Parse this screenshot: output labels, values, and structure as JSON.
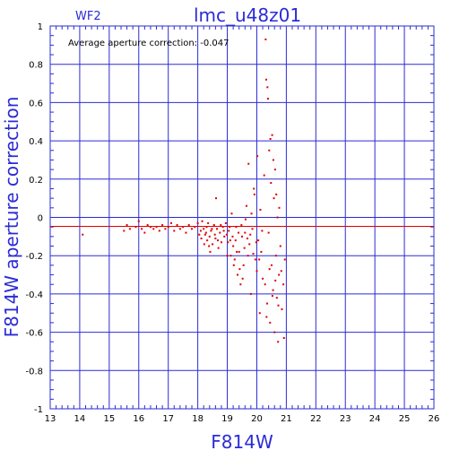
{
  "chart_data": {
    "type": "scatter",
    "title": "lmc_u48z01",
    "chip_label": "WF2",
    "annotation": "Average aperture correction: -0.047",
    "xlabel": "F814W",
    "ylabel": "F814W aperture correction",
    "xlim": [
      13,
      26
    ],
    "ylim": [
      -1,
      1
    ],
    "x_ticks": [
      "13",
      "14",
      "15",
      "16",
      "17",
      "18",
      "19",
      "20",
      "21",
      "22",
      "23",
      "24",
      "25",
      "26"
    ],
    "y_ticks": [
      "1",
      "0.8",
      "0.6",
      "0.4",
      "0.2",
      "0",
      "-0.2",
      "-0.4",
      "-0.6",
      "-0.8",
      "-1"
    ],
    "grid": true,
    "reference_line_y": -0.047,
    "colors": {
      "axes": "#2b2bd6",
      "points": "#e00000",
      "reference_line": "#e00000"
    },
    "series": [
      {
        "points": [
          [
            14.1,
            -0.09
          ],
          [
            15.5,
            -0.07
          ],
          [
            15.6,
            -0.04
          ],
          [
            15.7,
            -0.06
          ],
          [
            15.9,
            -0.05
          ],
          [
            16.0,
            -0.02
          ],
          [
            16.1,
            -0.06
          ],
          [
            16.2,
            -0.08
          ],
          [
            16.3,
            -0.04
          ],
          [
            16.4,
            -0.05
          ],
          [
            16.5,
            -0.06
          ],
          [
            16.6,
            -0.05
          ],
          [
            16.7,
            -0.07
          ],
          [
            16.8,
            -0.04
          ],
          [
            16.9,
            -0.06
          ],
          [
            17.0,
            -0.05
          ],
          [
            17.1,
            -0.03
          ],
          [
            17.2,
            -0.07
          ],
          [
            17.3,
            -0.04
          ],
          [
            17.4,
            -0.06
          ],
          [
            17.5,
            -0.05
          ],
          [
            17.6,
            -0.08
          ],
          [
            17.7,
            -0.04
          ],
          [
            17.8,
            -0.06
          ],
          [
            17.9,
            -0.05
          ],
          [
            18.0,
            -0.03
          ],
          [
            18.1,
            -0.07
          ],
          [
            18.15,
            -0.02
          ],
          [
            18.2,
            -0.06
          ],
          [
            18.25,
            -0.09
          ],
          [
            18.3,
            -0.05
          ],
          [
            18.32,
            -0.12
          ],
          [
            18.35,
            -0.03
          ],
          [
            18.4,
            -0.1
          ],
          [
            18.45,
            -0.07
          ],
          [
            18.5,
            -0.14
          ],
          [
            18.55,
            -0.04
          ],
          [
            18.6,
            -0.11
          ],
          [
            18.62,
            0.1
          ],
          [
            18.65,
            -0.06
          ],
          [
            18.7,
            -0.16
          ],
          [
            18.75,
            -0.08
          ],
          [
            18.8,
            -0.13
          ],
          [
            18.85,
            -0.05
          ],
          [
            18.9,
            -0.1
          ],
          [
            18.95,
            -0.03
          ],
          [
            19.0,
            -0.2
          ],
          [
            19.05,
            -0.07
          ],
          [
            19.1,
            -0.12
          ],
          [
            19.15,
            0.02
          ],
          [
            19.2,
            -0.15
          ],
          [
            19.25,
            -0.22
          ],
          [
            19.3,
            -0.05
          ],
          [
            19.35,
            -0.3
          ],
          [
            19.4,
            -0.18
          ],
          [
            19.45,
            -0.35
          ],
          [
            19.5,
            -0.1
          ],
          [
            19.55,
            -0.25
          ],
          [
            19.6,
            -0.08
          ],
          [
            19.65,
            0.06
          ],
          [
            19.7,
            -0.2
          ],
          [
            19.72,
            0.28
          ],
          [
            19.75,
            -0.14
          ],
          [
            19.8,
            -0.4
          ],
          [
            19.85,
            -0.06
          ],
          [
            19.9,
            0.15
          ],
          [
            19.95,
            -0.22
          ],
          [
            20.0,
            -0.28
          ],
          [
            20.02,
            0.32
          ],
          [
            20.05,
            -0.12
          ],
          [
            20.1,
            -0.5
          ],
          [
            20.12,
            0.04
          ],
          [
            20.15,
            -0.18
          ],
          [
            20.2,
            -0.32
          ],
          [
            20.25,
            0.22
          ],
          [
            20.3,
            0.93
          ],
          [
            20.32,
            0.72
          ],
          [
            20.35,
            -0.45
          ],
          [
            20.38,
            0.62
          ],
          [
            20.4,
            -0.08
          ],
          [
            20.42,
            0.35
          ],
          [
            20.45,
            -0.55
          ],
          [
            20.48,
            0.18
          ],
          [
            20.5,
            -0.25
          ],
          [
            20.52,
            0.43
          ],
          [
            20.55,
            -0.38
          ],
          [
            20.58,
            0.1
          ],
          [
            20.6,
            -0.6
          ],
          [
            20.62,
            0.25
          ],
          [
            20.65,
            -0.2
          ],
          [
            20.68,
            -0.42
          ],
          [
            20.7,
            0.0
          ],
          [
            20.72,
            -0.65
          ],
          [
            20.75,
            -0.3
          ],
          [
            20.8,
            -0.15
          ],
          [
            20.85,
            -0.48
          ],
          [
            20.9,
            -0.35
          ],
          [
            20.92,
            -0.63
          ],
          [
            20.95,
            -0.22
          ],
          [
            18.05,
            -0.09
          ],
          [
            18.12,
            -0.11
          ],
          [
            18.22,
            -0.14
          ],
          [
            18.28,
            -0.08
          ],
          [
            18.38,
            -0.15
          ],
          [
            18.42,
            -0.18
          ],
          [
            18.48,
            -0.06
          ],
          [
            18.58,
            -0.09
          ],
          [
            18.68,
            -0.12
          ],
          [
            18.78,
            -0.04
          ],
          [
            18.88,
            -0.07
          ],
          [
            18.98,
            -0.09
          ],
          [
            19.08,
            -0.05
          ],
          [
            19.18,
            -0.1
          ],
          [
            19.28,
            -0.12
          ],
          [
            19.38,
            -0.08
          ],
          [
            19.48,
            -0.04
          ],
          [
            19.58,
            -0.16
          ],
          [
            19.68,
            -0.11
          ],
          [
            19.78,
            -0.09
          ],
          [
            19.88,
            -0.19
          ],
          [
            19.98,
            -0.13
          ],
          [
            20.08,
            -0.22
          ],
          [
            20.18,
            -0.07
          ],
          [
            20.28,
            -0.35
          ],
          [
            20.33,
            -0.52
          ],
          [
            20.43,
            -0.27
          ],
          [
            20.53,
            -0.41
          ],
          [
            20.63,
            -0.33
          ],
          [
            20.73,
            -0.46
          ],
          [
            20.83,
            -0.28
          ],
          [
            20.36,
            0.68
          ],
          [
            20.46,
            0.41
          ],
          [
            20.56,
            0.3
          ],
          [
            20.66,
            0.12
          ],
          [
            20.76,
            0.05
          ],
          [
            19.92,
            0.12
          ],
          [
            19.82,
            0.02
          ],
          [
            19.62,
            -0.01
          ],
          [
            19.52,
            -0.32
          ],
          [
            19.42,
            -0.27
          ],
          [
            19.32,
            -0.18
          ],
          [
            19.22,
            -0.25
          ],
          [
            19.12,
            -0.2
          ],
          [
            19.02,
            -0.13
          ]
        ]
      }
    ]
  }
}
